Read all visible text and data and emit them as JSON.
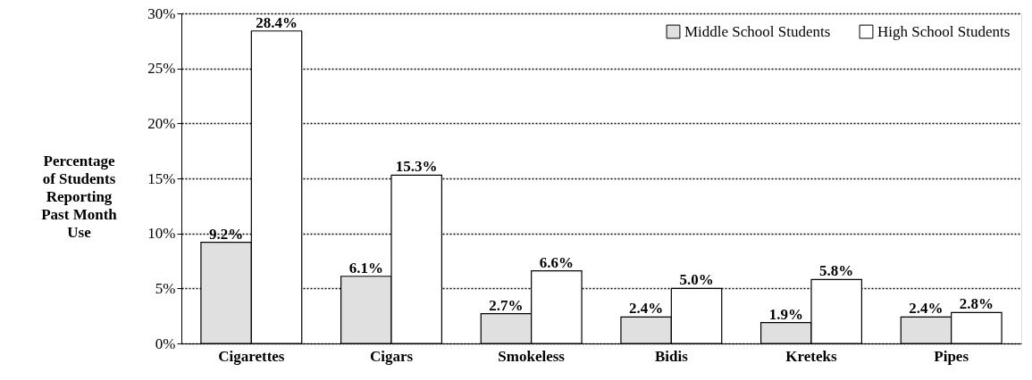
{
  "chart_data": {
    "type": "bar",
    "ylabel": "Percentage of Students Reporting Past Month Use",
    "categories": [
      "Cigarettes",
      "Cigars",
      "Smokeless",
      "Bidis",
      "Kreteks",
      "Pipes"
    ],
    "series": [
      {
        "name": "Middle School Students",
        "color": "#e0e0e0",
        "values": [
          9.2,
          6.1,
          2.7,
          2.4,
          1.9,
          2.4
        ],
        "value_labels": [
          "9.2%",
          "6.1%",
          "2.7%",
          "2.4%",
          "1.9%",
          "2.4%"
        ]
      },
      {
        "name": "High School Students",
        "color": "#ffffff",
        "values": [
          28.4,
          15.3,
          6.6,
          5.0,
          5.8,
          2.8
        ],
        "value_labels": [
          "28.4%",
          "15.3%",
          "6.6%",
          "5.0%",
          "5.8%",
          "2.8%"
        ]
      }
    ],
    "ylim": [
      0,
      30
    ],
    "yticks": [
      {
        "value": 0,
        "label": "0%"
      },
      {
        "value": 5,
        "label": "5%"
      },
      {
        "value": 10,
        "label": "10%"
      },
      {
        "value": 15,
        "label": "15%"
      },
      {
        "value": 20,
        "label": "20%"
      },
      {
        "value": 25,
        "label": "25%"
      },
      {
        "value": 30,
        "label": "30%"
      }
    ],
    "grid": "y",
    "legend": "top right"
  }
}
